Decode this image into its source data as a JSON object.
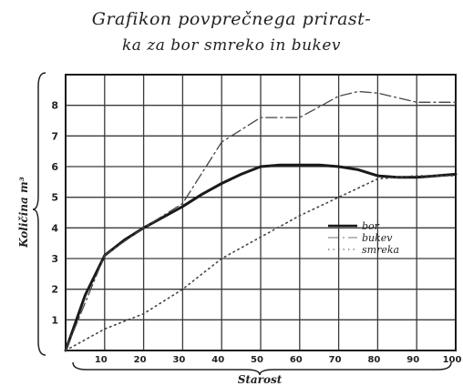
{
  "chart_data": {
    "type": "line",
    "title": "Grafikon povprečnega prirast-",
    "subtitle": "ka za bor smreko in bukev",
    "xlabel": "Starost",
    "ylabel": "Količina m³",
    "xlim": [
      0,
      100
    ],
    "ylim": [
      0,
      9
    ],
    "x_ticks": [
      "10",
      "20",
      "30",
      "40",
      "50",
      "60",
      "70",
      "80",
      "90",
      "100"
    ],
    "y_ticks": [
      "1",
      "2",
      "3",
      "4",
      "5",
      "6",
      "7",
      "8"
    ],
    "grid": true,
    "legend_position": "right-middle",
    "series": [
      {
        "name": "bor",
        "style": "solid",
        "color": "#1a1a1a",
        "points": [
          [
            0,
            0
          ],
          [
            5,
            1.8
          ],
          [
            10,
            3.1
          ],
          [
            15,
            3.6
          ],
          [
            20,
            4.0
          ],
          [
            25,
            4.35
          ],
          [
            30,
            4.7
          ],
          [
            35,
            5.1
          ],
          [
            40,
            5.45
          ],
          [
            45,
            5.75
          ],
          [
            50,
            6.0
          ],
          [
            55,
            6.05
          ],
          [
            60,
            6.05
          ],
          [
            65,
            6.05
          ],
          [
            70,
            6.0
          ],
          [
            75,
            5.9
          ],
          [
            80,
            5.7
          ],
          [
            85,
            5.65
          ],
          [
            90,
            5.65
          ],
          [
            95,
            5.7
          ],
          [
            100,
            5.75
          ]
        ]
      },
      {
        "name": "bukev",
        "style": "dashdot",
        "color": "#444444",
        "points": [
          [
            0,
            0
          ],
          [
            10,
            3.1
          ],
          [
            20,
            4.0
          ],
          [
            30,
            4.8
          ],
          [
            40,
            6.8
          ],
          [
            50,
            7.6
          ],
          [
            60,
            7.6
          ],
          [
            70,
            8.3
          ],
          [
            75,
            8.45
          ],
          [
            80,
            8.4
          ],
          [
            90,
            8.1
          ],
          [
            100,
            8.1
          ]
        ]
      },
      {
        "name": "smreka",
        "style": "dotted",
        "color": "#444444",
        "points": [
          [
            0,
            0
          ],
          [
            10,
            0.7
          ],
          [
            20,
            1.2
          ],
          [
            30,
            2.0
          ],
          [
            40,
            3.0
          ],
          [
            50,
            3.7
          ],
          [
            60,
            4.4
          ],
          [
            70,
            5.0
          ],
          [
            80,
            5.6
          ],
          [
            90,
            5.7
          ],
          [
            100,
            5.7
          ]
        ]
      }
    ]
  }
}
